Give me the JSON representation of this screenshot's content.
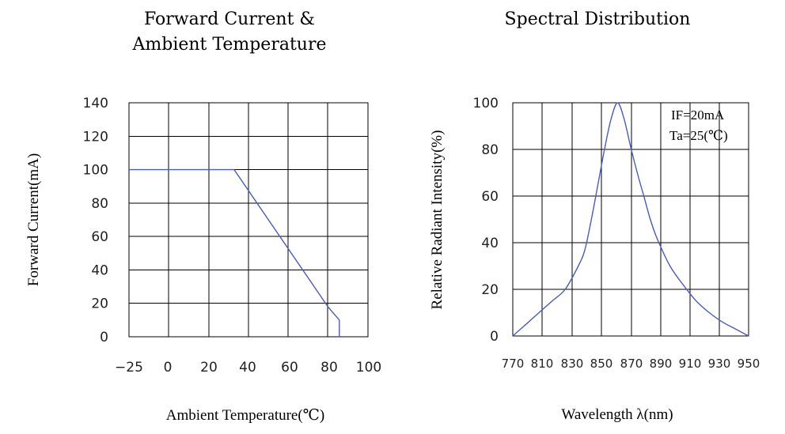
{
  "chart_data": [
    {
      "type": "line",
      "title": "Forward Current &\nAmbient Temperature",
      "xlabel": "Ambient Temperature(℃)",
      "ylabel": "Forward Current(mA)",
      "xlim": [
        -25,
        100
      ],
      "ylim": [
        0,
        140
      ],
      "x_ticks": [
        "−25",
        "0",
        "20",
        "40",
        "60",
        "80",
        "100"
      ],
      "y_ticks": [
        "0",
        "20",
        "40",
        "60",
        "80",
        "100",
        "120",
        "140"
      ],
      "grid": true,
      "series": [
        {
          "x": [
            -25,
            30,
            79,
            85,
            85
          ],
          "y": [
            100,
            100,
            18,
            10,
            0
          ],
          "color": "#4a5bc4"
        }
      ]
    },
    {
      "type": "line",
      "title": "Spectral Distribution",
      "xlabel": "Wavelength λ(nm)",
      "ylabel": "Relative Radiant Intensity(%)",
      "xlim": [
        770,
        950
      ],
      "ylim": [
        0,
        100
      ],
      "x_ticks": [
        "770",
        "810",
        "830",
        "850",
        "870",
        "890",
        "910",
        "930",
        "950"
      ],
      "y_ticks": [
        "0",
        "20",
        "40",
        "60",
        "80",
        "100"
      ],
      "grid": true,
      "annotations": [
        "IF=20mA",
        "Ta=25(℃)"
      ],
      "series": [
        {
          "x": [
            770,
            780,
            790,
            800,
            810,
            820,
            825,
            830,
            835,
            840,
            845,
            850,
            855,
            860,
            865,
            870,
            875,
            880,
            890,
            900,
            910,
            920,
            930,
            940,
            950
          ],
          "y": [
            0,
            5,
            10,
            15,
            20,
            30,
            37,
            50,
            65,
            80,
            93,
            100,
            93,
            81,
            70,
            60,
            50,
            42,
            30,
            22,
            15,
            10,
            6,
            3,
            0
          ],
          "color": "#4a5bc4"
        }
      ]
    }
  ]
}
